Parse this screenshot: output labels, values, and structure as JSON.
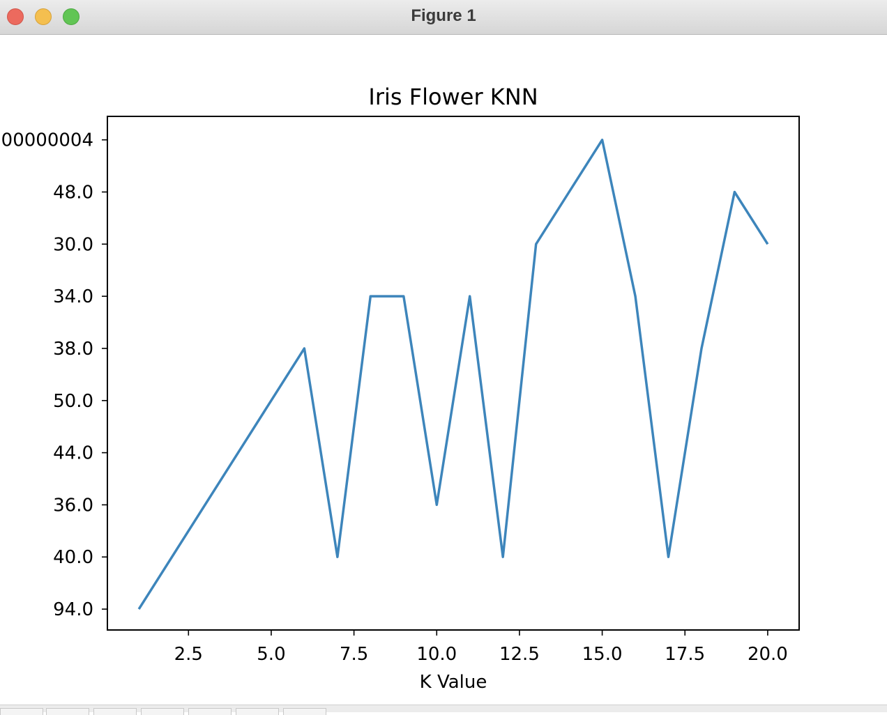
{
  "window": {
    "title": "Figure 1"
  },
  "chart_data": {
    "type": "line",
    "title": "Iris Flower KNN",
    "xlabel": "K Value",
    "ylabel": "",
    "x_ticks": [
      2.5,
      5.0,
      7.5,
      10.0,
      12.5,
      15.0,
      17.5,
      20.0
    ],
    "x_tick_labels": [
      "2.5",
      "5.0",
      "7.5",
      "10.0",
      "12.5",
      "15.0",
      "17.5",
      "20.0"
    ],
    "xlim": [
      0.05,
      20.95
    ],
    "y_categories": [
      "94.0",
      "40.0",
      "36.0",
      "44.0",
      "50.0",
      "38.0",
      "34.0",
      "30.0",
      "48.0",
      "00000004"
    ],
    "ylim": [
      -0.4,
      9.45
    ],
    "grid": false,
    "color": "#3d85bb",
    "series": [
      {
        "x": [
          1,
          2,
          3,
          4,
          5,
          6,
          7,
          8,
          9,
          10,
          11,
          12,
          13,
          14,
          15,
          16,
          17,
          18,
          19,
          20
        ],
        "y": [
          "94.0",
          "40.0",
          "36.0",
          "44.0",
          "50.0",
          "38.0",
          "40.0",
          "34.0",
          "34.0",
          "36.0",
          "34.0",
          "40.0",
          "30.0",
          "48.0",
          "00000004",
          "34.0",
          "40.0",
          "38.0",
          "48.0",
          "30.0"
        ]
      }
    ]
  }
}
